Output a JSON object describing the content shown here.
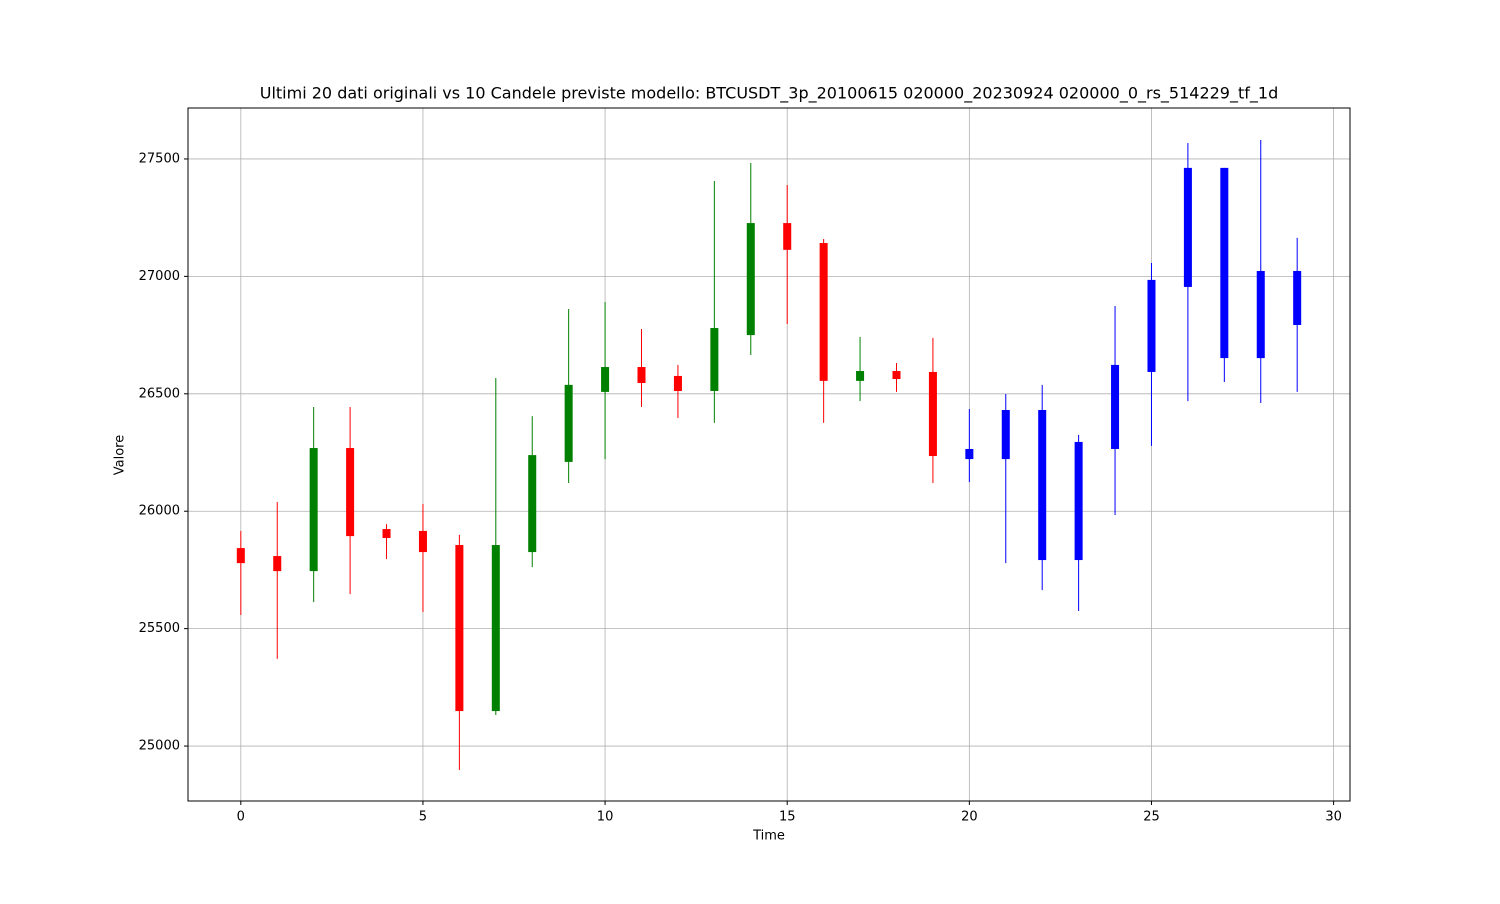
{
  "chart_data": {
    "type": "candlestick",
    "title": "Ultimi 20 dati originali vs 10 Candele previste modello: BTCUSDT_3p_20100615 020000_20230924 020000_0_rs_514229_tf_1d",
    "xlabel": "Time",
    "ylabel": "Valore",
    "xlim": [
      -1.45,
      30.45
    ],
    "ylim": [
      24766,
      27717
    ],
    "xticks": [
      0,
      5,
      10,
      15,
      20,
      25,
      30
    ],
    "yticks": [
      25000,
      25500,
      26000,
      26500,
      27000,
      27500
    ],
    "grid": true,
    "series": [
      {
        "up_color": "green",
        "down_color": "red",
        "x": [
          0,
          1,
          2,
          3,
          4,
          5,
          6,
          7,
          8,
          9,
          10,
          11,
          12,
          13,
          14,
          15,
          16,
          17,
          18,
          19
        ],
        "open": [
          25843,
          25809,
          25745,
          26269,
          25924,
          25916,
          25856,
          25149,
          25826,
          26210,
          26508,
          26614,
          26576,
          26512,
          26750,
          27227,
          27142,
          26555,
          26597,
          26593
        ],
        "high": [
          25916,
          26039,
          26444,
          26444,
          25945,
          26031,
          25899,
          26567,
          26405,
          26861,
          26891,
          26776,
          26623,
          27406,
          27483,
          27389,
          27159,
          26742,
          26631,
          26738
        ],
        "low": [
          25558,
          25371,
          25613,
          25647,
          25796,
          25571,
          24898,
          25132,
          25762,
          26120,
          26222,
          26444,
          26397,
          26376,
          26665,
          26797,
          26376,
          26469,
          26508,
          26120
        ],
        "close": [
          25779,
          25745,
          26269,
          25894,
          25886,
          25826,
          25149,
          25856,
          26239,
          26538,
          26614,
          26546,
          26512,
          26780,
          27227,
          27113,
          26555,
          26597,
          26563,
          26235
        ]
      },
      {
        "color": "blue",
        "x": [
          20,
          21,
          22,
          23,
          24,
          25,
          26,
          27,
          28,
          29
        ],
        "open": [
          26222,
          26222,
          25792,
          25792,
          26265,
          26593,
          26955,
          26652,
          26652,
          26793
        ],
        "high": [
          26435,
          26499,
          26538,
          26325,
          26874,
          27057,
          27568,
          27462,
          27581,
          27164
        ],
        "low": [
          26124,
          25779,
          25664,
          25575,
          25984,
          26278,
          26469,
          26550,
          26461,
          26508
        ],
        "close": [
          26265,
          26431,
          26431,
          26295,
          26623,
          26985,
          27462,
          27462,
          27023,
          27023
        ]
      }
    ]
  }
}
